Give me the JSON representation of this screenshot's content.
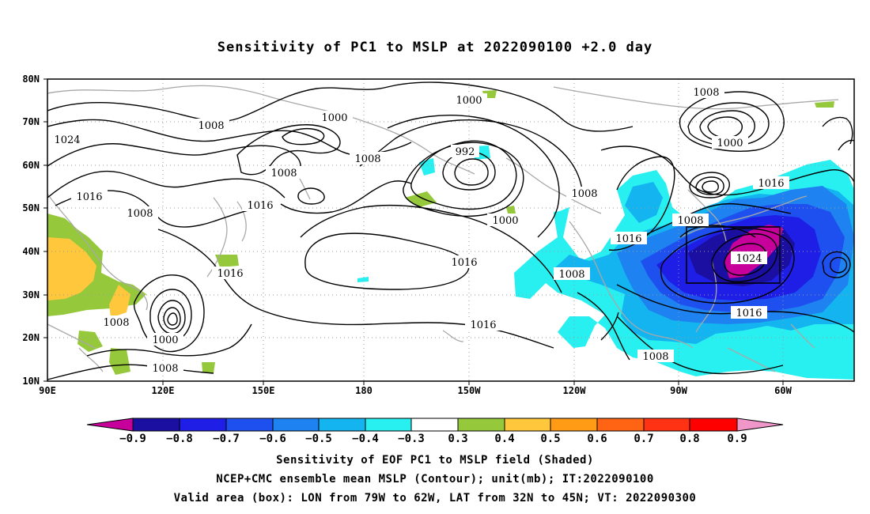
{
  "title": "Sensitivity of PC1 to MSLP at 2022090100 +2.0 day",
  "map": {
    "lat_labels": [
      "80N",
      "70N",
      "60N",
      "50N",
      "40N",
      "30N",
      "20N",
      "10N"
    ],
    "lon_labels": [
      "90E",
      "120E",
      "150E",
      "180",
      "150W",
      "120W",
      "90W",
      "60W"
    ],
    "contour_labels": [
      {
        "text": "1000"
      },
      {
        "text": "1008"
      },
      {
        "text": "1000"
      },
      {
        "text": "1008"
      },
      {
        "text": "1024"
      },
      {
        "text": "1008"
      },
      {
        "text": "992"
      },
      {
        "text": "1008"
      },
      {
        "text": "1016"
      },
      {
        "text": "1008"
      },
      {
        "text": "1016"
      },
      {
        "text": "1000"
      },
      {
        "text": "1008"
      },
      {
        "text": "1016"
      },
      {
        "text": "1016"
      },
      {
        "text": "1008"
      },
      {
        "text": "1000"
      },
      {
        "text": "1016"
      },
      {
        "text": "1024"
      },
      {
        "text": "1008"
      },
      {
        "text": "1016"
      },
      {
        "text": "1008"
      },
      {
        "text": "1016"
      },
      {
        "text": "1000"
      },
      {
        "text": "1008"
      }
    ],
    "valid_box": {
      "lon_from": "79W",
      "lon_to": "62W",
      "lat_from": "32N",
      "lat_to": "45N"
    }
  },
  "colorbar": {
    "colors": [
      "#c8009b",
      "#1a0fa0",
      "#1e1ee6",
      "#1e50f0",
      "#1e82f0",
      "#14b4f0",
      "#28f0f0",
      "#ffffff",
      "#96c83c",
      "#ffc83c",
      "#ff9b14",
      "#ff6414",
      "#ff3214",
      "#ff0000",
      "#f096c8"
    ],
    "labels": [
      "−0.9",
      "−0.8",
      "−0.7",
      "−0.6",
      "−0.5",
      "−0.4",
      "−0.3",
      "0.3",
      "0.4",
      "0.5",
      "0.6",
      "0.7",
      "0.8",
      "0.9"
    ]
  },
  "captions": {
    "line1": "Sensitivity of EOF PC1 to MSLP field (Shaded)",
    "line2": "NCEP+CMC ensemble mean MSLP (Contour); unit(mb); IT:2022090100",
    "line3": "Valid area (box): LON from 79W to 62W, LAT from 32N to 45N; VT: 2022090300"
  }
}
